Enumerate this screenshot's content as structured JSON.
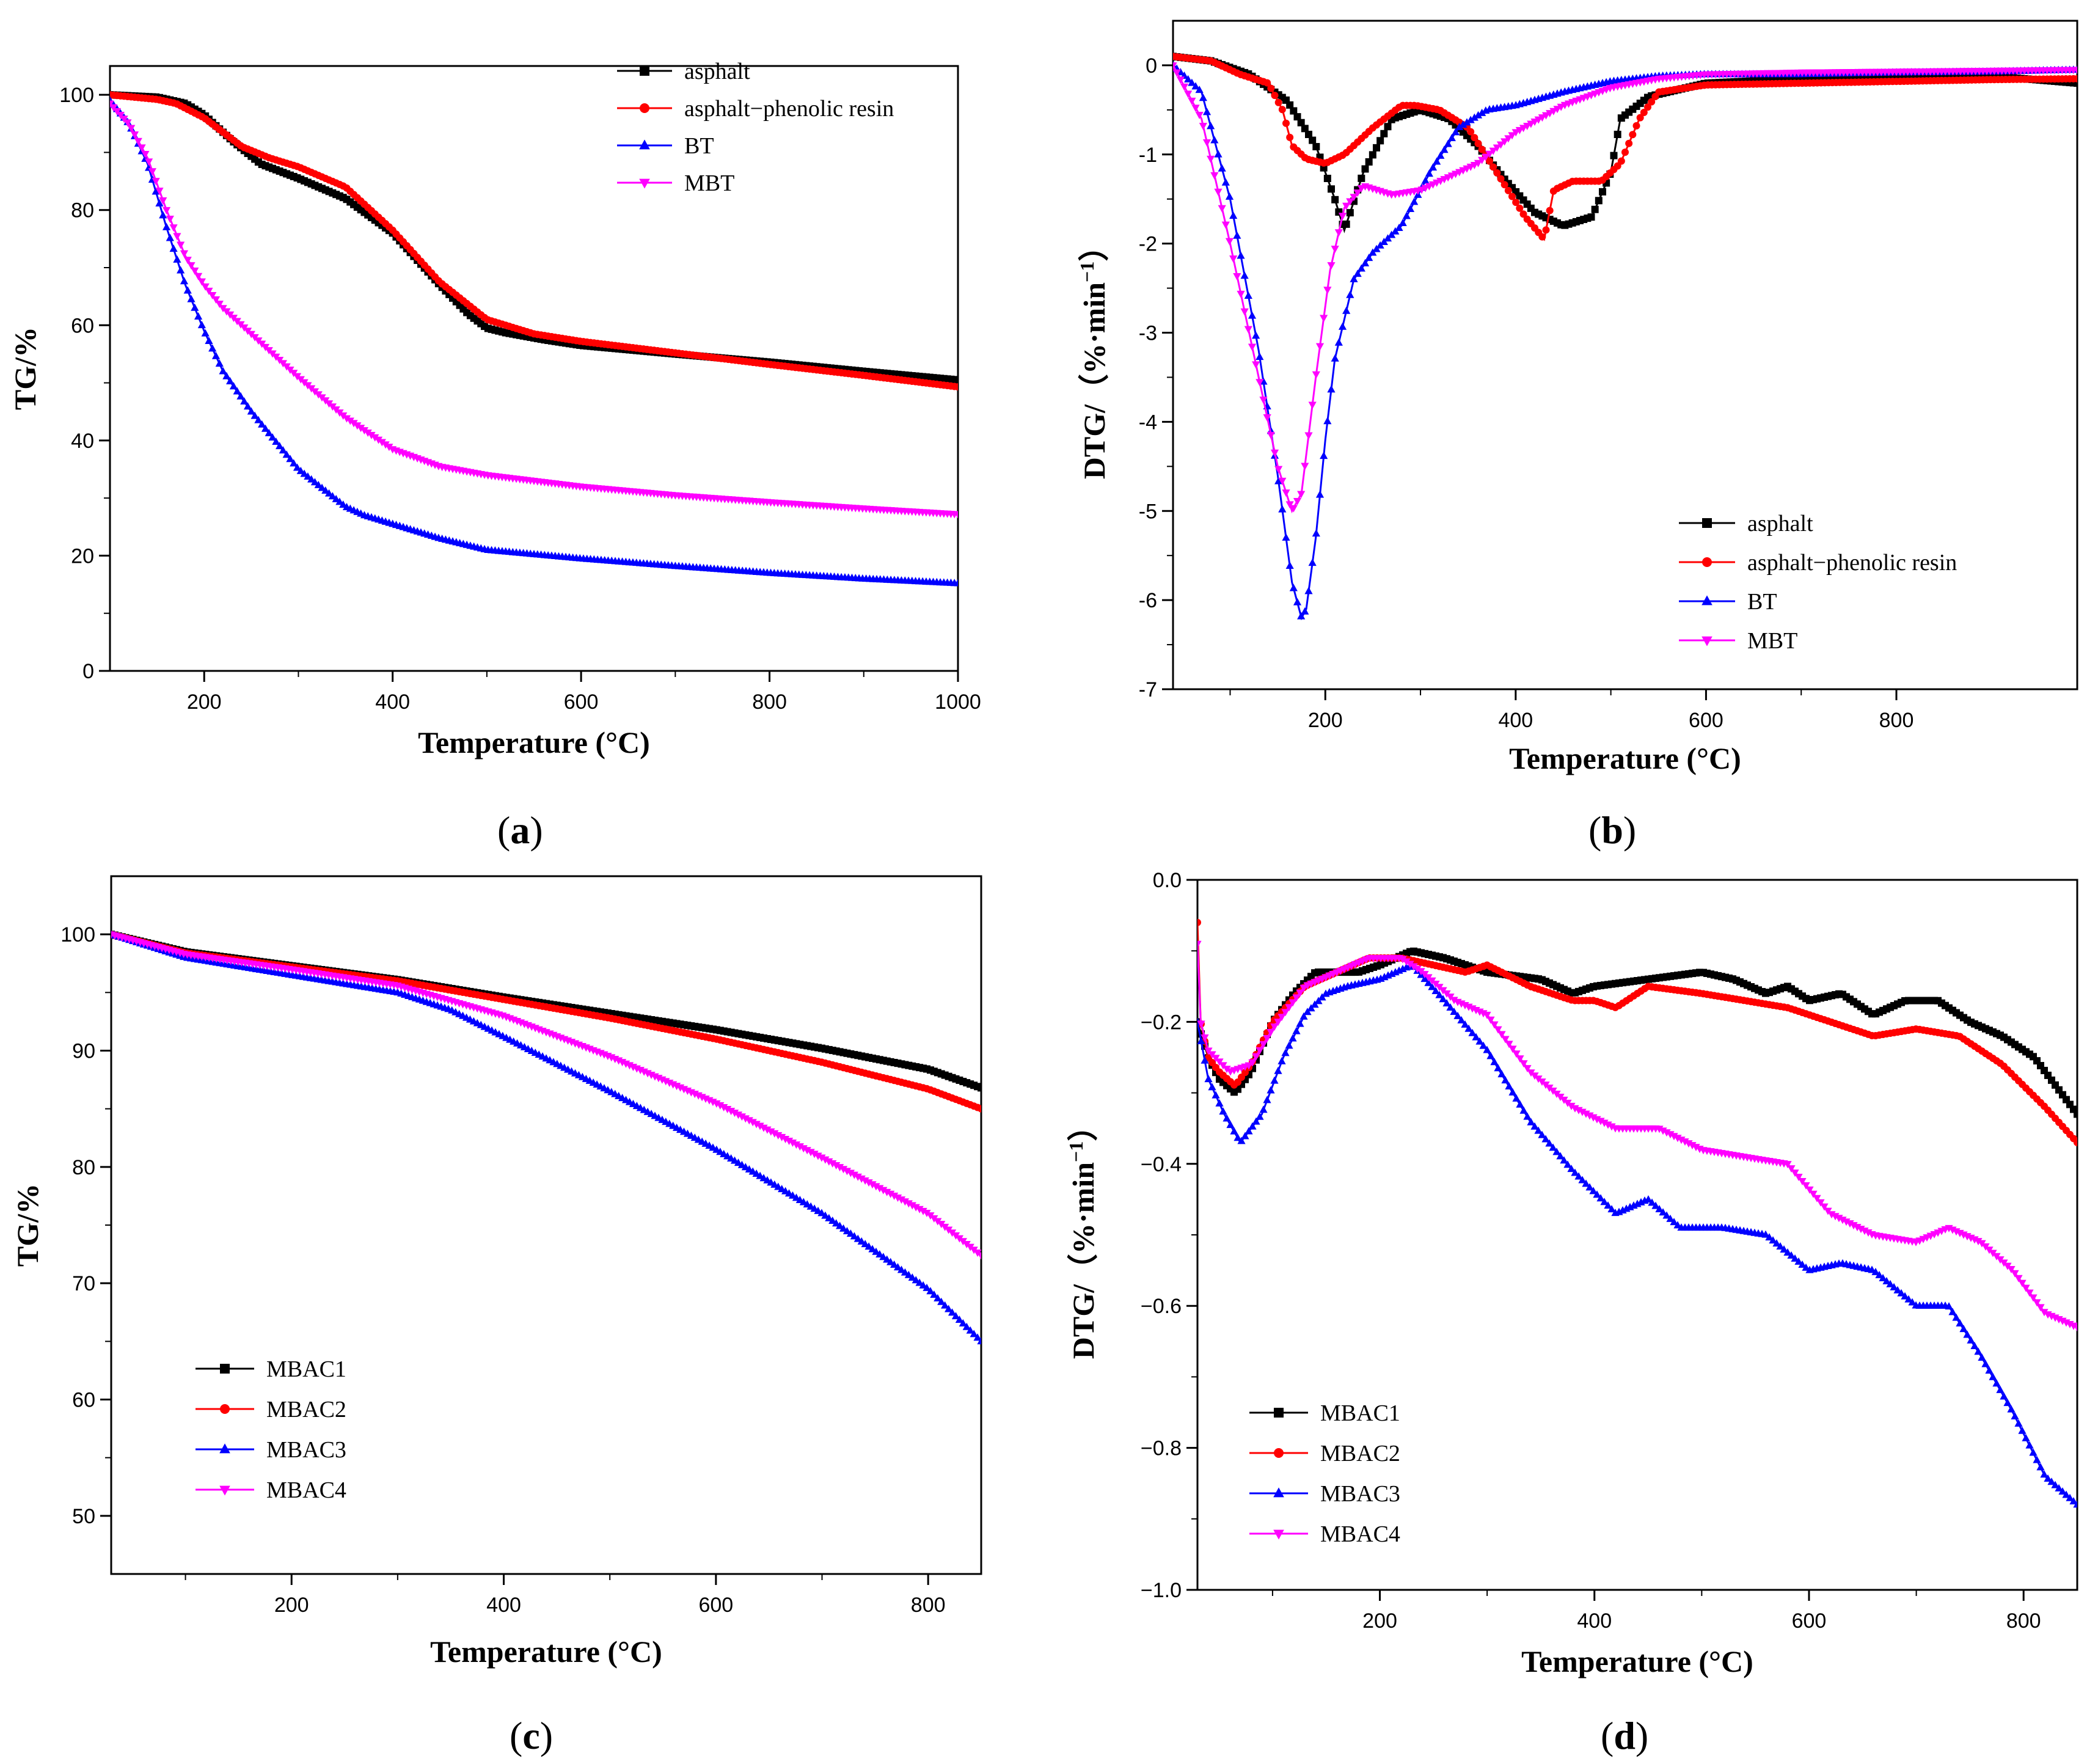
{
  "chart_data": [
    {
      "id": "a",
      "type": "line",
      "panel_label": "a",
      "xlabel": "Temperature (°C)",
      "ylabel": "TG/%",
      "xlim": [
        100,
        1000
      ],
      "ylim": [
        0,
        105
      ],
      "xticks": [
        200,
        400,
        600,
        800,
        1000
      ],
      "yticks": [
        0,
        20,
        40,
        60,
        80,
        100
      ],
      "legend_position": "top-right",
      "series": [
        {
          "name": "asphalt",
          "color": "#000000",
          "marker": "square",
          "x": [
            100,
            150,
            180,
            200,
            230,
            260,
            300,
            350,
            400,
            450,
            480,
            500,
            520,
            560,
            600,
            700,
            800,
            900,
            1000
          ],
          "y": [
            100,
            99.6,
            98.5,
            96.5,
            92,
            88,
            85.5,
            82,
            76,
            67,
            62,
            59.5,
            58.7,
            57.5,
            56.5,
            55,
            53.6,
            52,
            50.5
          ]
        },
        {
          "name": "asphalt−phenolic resin",
          "color": "#ff0000",
          "marker": "circle",
          "x": [
            100,
            150,
            170,
            200,
            240,
            270,
            300,
            350,
            400,
            450,
            500,
            550,
            600,
            700,
            800,
            900,
            1000
          ],
          "y": [
            100,
            99.2,
            98.5,
            96,
            91,
            89,
            87.5,
            84,
            76.5,
            67.5,
            61,
            58.5,
            57.2,
            55.2,
            53.2,
            51.3,
            49.3
          ]
        },
        {
          "name": "BT",
          "color": "#0000ff",
          "marker": "triangle-up",
          "x": [
            100,
            120,
            140,
            160,
            180,
            200,
            220,
            250,
            300,
            350,
            370,
            400,
            450,
            500,
            600,
            700,
            800,
            900,
            1000
          ],
          "y": [
            99,
            95,
            88,
            77,
            67,
            59,
            52,
            45,
            35,
            28.5,
            27,
            25.5,
            23,
            21,
            19.5,
            18.2,
            17,
            16,
            15.2
          ]
        },
        {
          "name": "MBT",
          "color": "#ff00ff",
          "marker": "triangle-down",
          "x": [
            100,
            120,
            140,
            160,
            180,
            200,
            220,
            250,
            300,
            350,
            400,
            450,
            500,
            600,
            700,
            800,
            900,
            1000
          ],
          "y": [
            98.5,
            95,
            89,
            80,
            72,
            67,
            63,
            58.5,
            51,
            44,
            38.5,
            35.5,
            34,
            32,
            30.5,
            29.3,
            28.2,
            27.2
          ]
        }
      ]
    },
    {
      "id": "b",
      "type": "line",
      "panel_label": "b",
      "xlabel": "Temperature (°C)",
      "ylabel": "DTG/（%·min",
      "ylabel_sup": "−1",
      "ylabel_end": "）",
      "xlim": [
        40,
        990
      ],
      "ylim": [
        -7,
        0.5
      ],
      "xticks": [
        200,
        400,
        600,
        800
      ],
      "yticks": [
        -7,
        -6,
        -5,
        -4,
        -3,
        -2,
        -1,
        0
      ],
      "legend_position": "bottom-right",
      "series": [
        {
          "name": "asphalt",
          "color": "#000000",
          "marker": "square",
          "x": [
            40,
            80,
            120,
            160,
            190,
            210,
            220,
            240,
            270,
            300,
            330,
            360,
            390,
            420,
            450,
            480,
            500,
            510,
            540,
            600,
            700,
            800,
            900,
            990
          ],
          "y": [
            0.1,
            0.05,
            -0.1,
            -0.4,
            -0.9,
            -1.5,
            -1.85,
            -1.2,
            -0.6,
            -0.5,
            -0.6,
            -0.9,
            -1.3,
            -1.65,
            -1.8,
            -1.7,
            -1.2,
            -0.6,
            -0.35,
            -0.2,
            -0.15,
            -0.12,
            -0.12,
            -0.2
          ]
        },
        {
          "name": "asphalt−phenolic resin",
          "color": "#ff0000",
          "marker": "circle",
          "x": [
            40,
            80,
            110,
            140,
            155,
            165,
            180,
            200,
            220,
            250,
            280,
            295,
            320,
            350,
            380,
            410,
            430,
            440,
            460,
            490,
            510,
            530,
            550,
            600,
            700,
            800,
            900,
            990
          ],
          "y": [
            0.1,
            0.05,
            -0.1,
            -0.2,
            -0.5,
            -0.9,
            -1.05,
            -1.1,
            -1.0,
            -0.7,
            -0.45,
            -0.45,
            -0.5,
            -0.7,
            -1.2,
            -1.7,
            -1.95,
            -1.4,
            -1.3,
            -1.3,
            -1.1,
            -0.6,
            -0.3,
            -0.22,
            -0.2,
            -0.18,
            -0.16,
            -0.15
          ]
        },
        {
          "name": "BT",
          "color": "#0000ff",
          "marker": "triangle-up",
          "x": [
            40,
            70,
            100,
            130,
            150,
            165,
            175,
            180,
            190,
            200,
            210,
            230,
            250,
            280,
            310,
            340,
            370,
            400,
            450,
            500,
            550,
            600,
            700,
            800,
            900,
            990
          ],
          "y": [
            0,
            -0.3,
            -1.5,
            -3.2,
            -4.6,
            -5.8,
            -6.2,
            -6.1,
            -5.3,
            -4.2,
            -3.3,
            -2.4,
            -2.1,
            -1.8,
            -1.2,
            -0.7,
            -0.5,
            -0.45,
            -0.3,
            -0.18,
            -0.12,
            -0.1,
            -0.1,
            -0.08,
            -0.07,
            -0.05
          ]
        },
        {
          "name": "MBT",
          "color": "#ff00ff",
          "marker": "triangle-down",
          "x": [
            40,
            70,
            100,
            130,
            150,
            165,
            175,
            190,
            205,
            220,
            240,
            270,
            300,
            330,
            360,
            400,
            450,
            500,
            550,
            600,
            700,
            800,
            900,
            990
          ],
          "y": [
            0,
            -0.6,
            -2.0,
            -3.5,
            -4.5,
            -5.0,
            -4.8,
            -3.5,
            -2.3,
            -1.6,
            -1.35,
            -1.45,
            -1.4,
            -1.25,
            -1.1,
            -0.75,
            -0.45,
            -0.25,
            -0.15,
            -0.1,
            -0.08,
            -0.07,
            -0.06,
            -0.05
          ]
        }
      ]
    },
    {
      "id": "c",
      "type": "line",
      "panel_label": "c",
      "xlabel": "Temperature (°C)",
      "ylabel": "TG/%",
      "xlim": [
        30,
        850
      ],
      "ylim": [
        45,
        105
      ],
      "xticks": [
        200,
        400,
        600,
        800
      ],
      "yticks": [
        50,
        60,
        70,
        80,
        90,
        100
      ],
      "legend_position": "bottom-left",
      "series": [
        {
          "name": "MBAC1",
          "color": "#000000",
          "marker": "square",
          "x": [
            30,
            100,
            200,
            300,
            400,
            500,
            600,
            700,
            800,
            850
          ],
          "y": [
            100,
            98.5,
            97.3,
            96.1,
            94.6,
            93.2,
            91.8,
            90.2,
            88.4,
            86.8
          ]
        },
        {
          "name": "MBAC2",
          "color": "#ff0000",
          "marker": "circle",
          "x": [
            30,
            100,
            200,
            300,
            400,
            500,
            600,
            700,
            800,
            850
          ],
          "y": [
            100,
            98.4,
            97.2,
            96,
            94.4,
            92.8,
            91,
            89,
            86.7,
            85
          ]
        },
        {
          "name": "MBAC3",
          "color": "#0000ff",
          "marker": "triangle-up",
          "x": [
            30,
            100,
            200,
            300,
            350,
            400,
            500,
            600,
            700,
            800,
            850
          ],
          "y": [
            100,
            98,
            96.5,
            95,
            93.5,
            91.2,
            86.5,
            81.5,
            76,
            69.5,
            65
          ]
        },
        {
          "name": "MBAC4",
          "color": "#ff00ff",
          "marker": "triangle-down",
          "x": [
            30,
            100,
            200,
            300,
            400,
            500,
            600,
            700,
            800,
            850
          ],
          "y": [
            100,
            98.3,
            97,
            95.6,
            93,
            89.5,
            85.5,
            80.8,
            76,
            72.4
          ]
        }
      ]
    },
    {
      "id": "d",
      "type": "line",
      "panel_label": "d",
      "xlabel": "Temperature (°C)",
      "ylabel": "DTG/（%·min",
      "ylabel_sup": "−1",
      "ylabel_end": "）",
      "xlim": [
        30,
        850
      ],
      "ylim": [
        -1.0,
        0.0
      ],
      "xticks": [
        200,
        400,
        600,
        800
      ],
      "yticks": [
        -1.0,
        -0.8,
        -0.6,
        -0.4,
        -0.2,
        0.0
      ],
      "ytick_labels": [
        "−1.0",
        "−0.8",
        "−0.6",
        "−0.4",
        "−0.2",
        "0.0"
      ],
      "legend_position": "bottom-left",
      "series": [
        {
          "name": "MBAC1",
          "color": "#000000",
          "marker": "square",
          "x": [
            30,
            40,
            50,
            65,
            80,
            100,
            120,
            140,
            160,
            180,
            200,
            230,
            260,
            300,
            350,
            380,
            400,
            450,
            500,
            530,
            560,
            580,
            600,
            630,
            660,
            690,
            720,
            750,
            780,
            810,
            850
          ],
          "y": [
            -0.2,
            -0.25,
            -0.28,
            -0.3,
            -0.27,
            -0.2,
            -0.16,
            -0.13,
            -0.13,
            -0.13,
            -0.12,
            -0.1,
            -0.11,
            -0.13,
            -0.14,
            -0.16,
            -0.15,
            -0.14,
            -0.13,
            -0.14,
            -0.16,
            -0.15,
            -0.17,
            -0.16,
            -0.19,
            -0.17,
            -0.17,
            -0.2,
            -0.22,
            -0.25,
            -0.33
          ]
        },
        {
          "name": "MBAC2",
          "color": "#ff0000",
          "marker": "circle",
          "x": [
            30,
            33,
            40,
            50,
            65,
            80,
            100,
            130,
            160,
            190,
            220,
            250,
            280,
            300,
            340,
            380,
            400,
            420,
            450,
            500,
            540,
            580,
            620,
            660,
            700,
            740,
            780,
            820,
            850
          ],
          "y": [
            -0.06,
            -0.2,
            -0.25,
            -0.27,
            -0.29,
            -0.26,
            -0.2,
            -0.15,
            -0.13,
            -0.11,
            -0.11,
            -0.12,
            -0.13,
            -0.12,
            -0.15,
            -0.17,
            -0.17,
            -0.18,
            -0.15,
            -0.16,
            -0.17,
            -0.18,
            -0.2,
            -0.22,
            -0.21,
            -0.22,
            -0.26,
            -0.32,
            -0.37
          ]
        },
        {
          "name": "MBAC3",
          "color": "#0000ff",
          "marker": "triangle-up",
          "x": [
            30,
            40,
            55,
            70,
            90,
            110,
            130,
            150,
            170,
            200,
            230,
            260,
            300,
            340,
            380,
            420,
            450,
            480,
            520,
            560,
            600,
            630,
            660,
            700,
            730,
            760,
            790,
            820,
            850
          ],
          "y": [
            -0.2,
            -0.28,
            -0.33,
            -0.37,
            -0.33,
            -0.25,
            -0.19,
            -0.16,
            -0.15,
            -0.14,
            -0.12,
            -0.17,
            -0.24,
            -0.34,
            -0.41,
            -0.47,
            -0.45,
            -0.49,
            -0.49,
            -0.5,
            -0.55,
            -0.54,
            -0.55,
            -0.6,
            -0.6,
            -0.67,
            -0.75,
            -0.84,
            -0.88
          ]
        },
        {
          "name": "MBAC4",
          "color": "#ff00ff",
          "marker": "triangle-down",
          "x": [
            30,
            33,
            40,
            60,
            80,
            100,
            130,
            160,
            190,
            220,
            240,
            270,
            300,
            340,
            380,
            420,
            460,
            500,
            540,
            580,
            620,
            660,
            700,
            730,
            760,
            790,
            820,
            850
          ],
          "y": [
            -0.09,
            -0.2,
            -0.24,
            -0.27,
            -0.26,
            -0.21,
            -0.15,
            -0.13,
            -0.11,
            -0.11,
            -0.13,
            -0.17,
            -0.19,
            -0.27,
            -0.32,
            -0.35,
            -0.35,
            -0.38,
            -0.39,
            -0.4,
            -0.47,
            -0.5,
            -0.51,
            -0.49,
            -0.51,
            -0.55,
            -0.61,
            -0.63
          ]
        }
      ]
    }
  ]
}
